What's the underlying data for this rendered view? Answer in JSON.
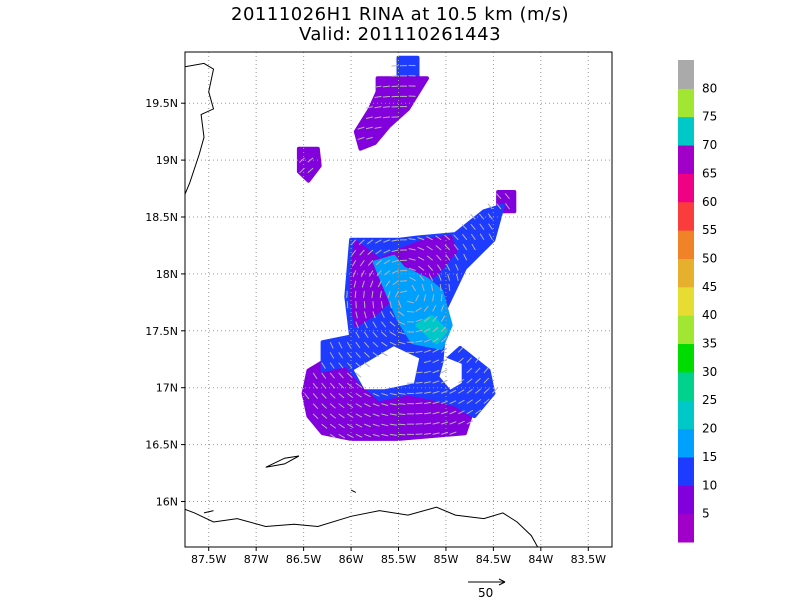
{
  "chart_data": {
    "type": "heatmap",
    "title": "20111026H1 RINA at 10.5 km (m/s)",
    "subtitle": "Valid: 201110261443",
    "xlim": [
      -87.75,
      -83.25
    ],
    "ylim": [
      15.6,
      19.95
    ],
    "x_ticks": [
      {
        "value": -87.5,
        "label": "87.5W"
      },
      {
        "value": -87.0,
        "label": "87W"
      },
      {
        "value": -86.5,
        "label": "86.5W"
      },
      {
        "value": -86.0,
        "label": "86W"
      },
      {
        "value": -85.5,
        "label": "85.5W"
      },
      {
        "value": -85.0,
        "label": "85W"
      },
      {
        "value": -84.5,
        "label": "84.5W"
      },
      {
        "value": -84.0,
        "label": "84W"
      },
      {
        "value": -83.5,
        "label": "83.5W"
      }
    ],
    "y_ticks": [
      {
        "value": 16.0,
        "label": "16N"
      },
      {
        "value": 16.5,
        "label": "16.5N"
      },
      {
        "value": 17.0,
        "label": "17N"
      },
      {
        "value": 17.5,
        "label": "17.5N"
      },
      {
        "value": 18.0,
        "label": "18N"
      },
      {
        "value": 18.5,
        "label": "18.5N"
      },
      {
        "value": 19.0,
        "label": "19N"
      },
      {
        "value": 19.5,
        "label": "19.5N"
      }
    ],
    "grid": true,
    "colorbar": {
      "placement": "right",
      "labels": [
        "5",
        "10",
        "15",
        "20",
        "25",
        "30",
        "35",
        "40",
        "45",
        "50",
        "55",
        "60",
        "65",
        "70",
        "75",
        "80"
      ],
      "colors": [
        "#a000c8",
        "#8200dc",
        "#1e3cff",
        "#00a0ff",
        "#00c8c8",
        "#00d28c",
        "#00dc00",
        "#a0e632",
        "#e6dc32",
        "#e6af2d",
        "#f08228",
        "#fa3c3c",
        "#f00082",
        "#a000c8",
        "#00c8c8",
        "#a0e632",
        "#aaaaaa"
      ]
    },
    "reference_vector": {
      "label": "50",
      "unit": "m/s"
    },
    "wind_regions": [
      {
        "speed_class": "10-15",
        "color": "#1e3cff",
        "polygon": [
          [
            -85.5,
            19.9
          ],
          [
            -85.3,
            19.9
          ],
          [
            -85.3,
            19.7
          ],
          [
            -85.5,
            19.7
          ]
        ]
      },
      {
        "speed_class": "5-10",
        "color": "#8200dc",
        "polygon": [
          [
            -85.55,
            19.72
          ],
          [
            -85.2,
            19.72
          ],
          [
            -85.4,
            19.45
          ],
          [
            -85.6,
            19.3
          ],
          [
            -85.75,
            19.15
          ],
          [
            -85.9,
            19.1
          ],
          [
            -85.95,
            19.25
          ],
          [
            -85.8,
            19.45
          ],
          [
            -85.72,
            19.6
          ],
          [
            -85.72,
            19.72
          ]
        ]
      },
      {
        "speed_class": "5-10",
        "color": "#8200dc",
        "polygon": [
          [
            -86.55,
            19.1
          ],
          [
            -86.35,
            19.1
          ],
          [
            -86.33,
            18.95
          ],
          [
            -86.45,
            18.82
          ],
          [
            -86.55,
            18.9
          ]
        ]
      },
      {
        "speed_class": "5-10",
        "color": "#8200dc",
        "polygon": [
          [
            -84.45,
            18.72
          ],
          [
            -84.28,
            18.72
          ],
          [
            -84.28,
            18.55
          ],
          [
            -84.45,
            18.55
          ]
        ]
      },
      {
        "speed_class": "5-10",
        "color": "#8200dc",
        "polygon": [
          [
            -86.25,
            17.25
          ],
          [
            -85.45,
            17.3
          ],
          [
            -85.5,
            17.0
          ],
          [
            -85.3,
            16.95
          ],
          [
            -85.0,
            16.95
          ],
          [
            -84.85,
            16.95
          ],
          [
            -84.75,
            17.1
          ],
          [
            -84.7,
            16.85
          ],
          [
            -84.8,
            16.6
          ],
          [
            -85.5,
            16.55
          ],
          [
            -86.0,
            16.55
          ],
          [
            -86.3,
            16.6
          ],
          [
            -86.45,
            16.75
          ],
          [
            -86.5,
            16.95
          ],
          [
            -86.45,
            17.15
          ]
        ]
      },
      {
        "speed_class": "10-15",
        "color": "#1e3cff",
        "polygon": [
          [
            -86.0,
            18.3
          ],
          [
            -85.8,
            18.3
          ],
          [
            -85.5,
            18.3
          ],
          [
            -85.3,
            18.32
          ],
          [
            -84.9,
            18.35
          ],
          [
            -84.6,
            18.55
          ],
          [
            -84.4,
            18.6
          ],
          [
            -84.5,
            18.3
          ],
          [
            -84.8,
            18.05
          ],
          [
            -85.0,
            17.7
          ],
          [
            -85.05,
            17.2
          ],
          [
            -84.85,
            17.35
          ],
          [
            -84.55,
            17.15
          ],
          [
            -84.5,
            16.95
          ],
          [
            -84.7,
            16.75
          ],
          [
            -84.9,
            16.85
          ],
          [
            -85.1,
            16.9
          ],
          [
            -85.4,
            16.95
          ],
          [
            -85.7,
            16.9
          ],
          [
            -85.9,
            17.05
          ],
          [
            -86.05,
            17.2
          ],
          [
            -86.3,
            17.15
          ],
          [
            -86.3,
            17.4
          ],
          [
            -86.0,
            17.45
          ],
          [
            -86.05,
            17.8
          ]
        ]
      },
      {
        "speed_class": "5-10",
        "color": "#8200dc",
        "polygon": [
          [
            -85.95,
            18.28
          ],
          [
            -85.7,
            18.12
          ],
          [
            -85.5,
            18.2
          ],
          [
            -85.2,
            18.3
          ],
          [
            -84.95,
            18.32
          ],
          [
            -84.9,
            18.2
          ],
          [
            -85.1,
            18.0
          ],
          [
            -85.35,
            17.9
          ],
          [
            -85.55,
            17.8
          ],
          [
            -85.75,
            17.65
          ],
          [
            -85.95,
            17.55
          ],
          [
            -86.0,
            17.8
          ],
          [
            -85.98,
            18.1
          ]
        ]
      },
      {
        "speed_class": "15-20",
        "color": "#00a0ff",
        "polygon": [
          [
            -85.75,
            18.1
          ],
          [
            -85.55,
            18.15
          ],
          [
            -85.45,
            18.05
          ],
          [
            -85.2,
            17.95
          ],
          [
            -85.05,
            17.85
          ],
          [
            -84.95,
            17.55
          ],
          [
            -85.05,
            17.35
          ],
          [
            -85.35,
            17.4
          ],
          [
            -85.5,
            17.6
          ]
        ]
      },
      {
        "speed_class": "20-25",
        "color": "#00c8c8",
        "polygon": [
          [
            -85.3,
            17.55
          ],
          [
            -85.15,
            17.62
          ],
          [
            -85.0,
            17.5
          ],
          [
            -85.1,
            17.4
          ]
        ]
      }
    ],
    "calm_regions": [
      {
        "polygon": [
          [
            -85.95,
            17.15
          ],
          [
            -85.55,
            17.35
          ],
          [
            -85.3,
            17.25
          ],
          [
            -85.35,
            17.05
          ],
          [
            -85.65,
            17.0
          ],
          [
            -85.85,
            17.0
          ]
        ]
      },
      {
        "polygon": [
          [
            -85.0,
            17.25
          ],
          [
            -84.85,
            17.2
          ],
          [
            -84.85,
            17.05
          ],
          [
            -84.95,
            17.0
          ],
          [
            -85.05,
            17.1
          ]
        ]
      }
    ]
  }
}
